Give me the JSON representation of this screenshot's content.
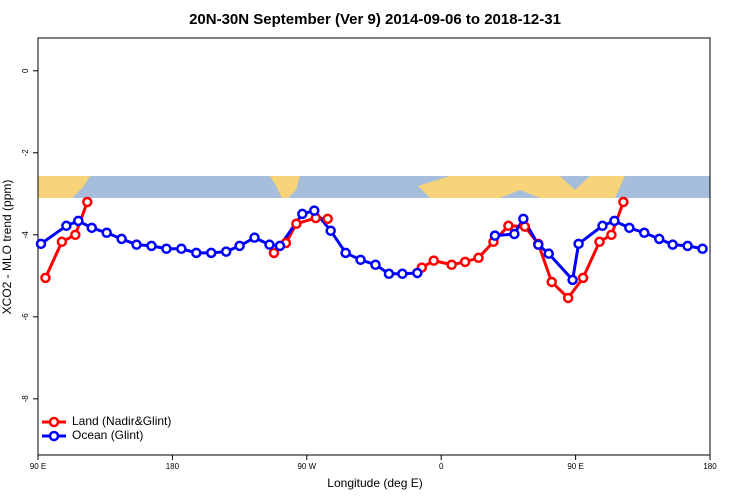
{
  "chart_data": {
    "type": "line",
    "title": "20N-30N September (Ver 9)   2014-09-06 to 2018-12-31",
    "x_label": "Longitude (deg E)",
    "y_label": "XCO2 - MLO trend (ppm)",
    "xlim": [
      90,
      540
    ],
    "ylim": [
      -9.37,
      0.8
    ],
    "xticks": [
      {
        "value": 90,
        "label": "90 E"
      },
      180,
      {
        "value": 270,
        "label": "90 W"
      },
      {
        "value": 360,
        "label": "0"
      },
      {
        "value": 450,
        "label": "90 E"
      },
      {
        "value": 540,
        "label": "180"
      }
    ],
    "yticks": [
      0,
      -2,
      -4,
      -6,
      -8
    ],
    "legend": "bottom-left",
    "series": [
      {
        "name": "Land (Nadir&Glint)",
        "color": "#ff0000",
        "x": [
          95,
          106,
          115,
          123,
          185,
          248,
          256,
          263,
          276,
          284,
          315,
          347,
          355,
          367,
          376,
          385,
          395,
          405,
          416,
          425,
          434,
          445,
          455,
          466,
          474,
          482
        ],
        "values": [
          -5.05,
          -4.17,
          -4.0,
          -3.2,
          null,
          -4.44,
          -4.2,
          -3.73,
          -3.59,
          -3.61,
          null,
          -4.8,
          -4.63,
          -4.73,
          -4.66,
          -4.56,
          -4.17,
          -3.78,
          -3.8,
          -4.22,
          -5.15,
          -5.54,
          -5.05,
          -4.17,
          -4.0,
          -3.2
        ]
      },
      {
        "name": "Ocean (Glint)",
        "color": "#0000ff",
        "x": [
          92,
          109,
          117,
          126,
          136,
          146,
          156,
          166,
          176,
          186,
          196,
          206,
          216,
          225,
          235,
          245,
          252,
          267,
          275,
          286,
          296,
          306,
          316,
          325,
          334,
          344,
          370,
          396,
          409,
          415,
          425,
          432,
          448,
          452,
          468,
          476,
          486,
          496,
          506,
          515,
          525,
          535
        ],
        "values": [
          -4.22,
          -3.78,
          -3.66,
          -3.83,
          -3.95,
          -4.1,
          -4.24,
          -4.27,
          -4.34,
          -4.34,
          -4.44,
          -4.44,
          -4.41,
          -4.27,
          -4.07,
          -4.24,
          -4.27,
          -3.49,
          -3.41,
          -3.9,
          -4.44,
          -4.61,
          -4.73,
          -4.95,
          -4.95,
          -4.93,
          null,
          -4.02,
          -3.98,
          -3.61,
          -4.24,
          -4.46,
          -5.1,
          -4.22,
          -3.78,
          -3.66,
          -3.83,
          -3.95,
          -4.1,
          -4.24,
          -4.27,
          -4.34
        ]
      }
    ]
  }
}
